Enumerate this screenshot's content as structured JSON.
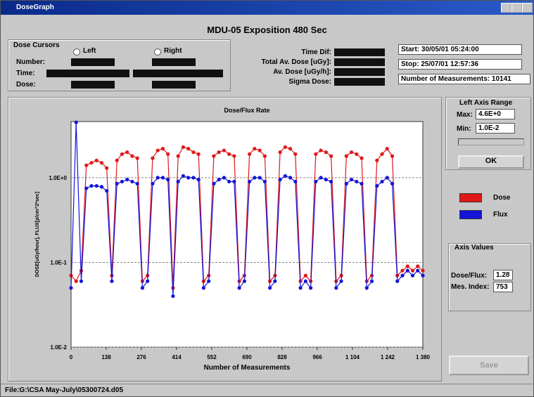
{
  "window": {
    "title": "DoseGraph"
  },
  "header": "MDU-05 Exposition 480 Sec",
  "cursors": {
    "title": "Dose Cursors",
    "left": "Left",
    "right": "Right",
    "number": "Number:",
    "time": "Time:",
    "dose": "Dose:"
  },
  "stats": {
    "time_dif": "Time Dif:",
    "total_av_dose": "Total Av. Dose [uGy]:",
    "av_dose": "Av. Dose [uGy/h]:",
    "sigma_dose": "Sigma Dose:"
  },
  "info": {
    "start": "Start: 30/05/01 05:24:00",
    "stop": "Stop: 25/07/01 12:57:36",
    "measurements": "Number of Measurements: 10141"
  },
  "axis_range": {
    "title": "Left Axis Range",
    "max_label": "Max:",
    "max": "4.6E+0",
    "min_label": "Min:",
    "min": "1.0E-2",
    "ok": "OK"
  },
  "axis_values": {
    "title": "Axis Values",
    "dose_flux_label": "Dose/Flux:",
    "dose_flux": "1.28",
    "index_label": "Mes. Index:",
    "index": "753"
  },
  "save": "Save",
  "status": "File:G:\\CSA May-July\\05300724.d05",
  "chart_data": {
    "type": "line",
    "title": "Dose/Flux Rate",
    "x_label": "Number of Measurements",
    "y_label": "DOSE[uGy/hour], FLUX[p/cm^2*sec]",
    "log_y": true,
    "grid": true,
    "xlim": [
      0,
      1380
    ],
    "ylim": [
      0.01,
      4.6
    ],
    "xticks": [
      0,
      138,
      276,
      414,
      552,
      690,
      828,
      966,
      {
        "value": 1104,
        "label": "1 104"
      },
      {
        "value": 1242,
        "label": "1 242"
      },
      {
        "value": 1380,
        "label": "1 380"
      }
    ],
    "yticks": [
      {
        "value": 0.01,
        "label": "1.0E-2"
      },
      {
        "value": 0.1,
        "label": "1.0E-1"
      },
      {
        "value": 1,
        "label": "1.0E+0"
      }
    ],
    "x": [
      0,
      20,
      40,
      60,
      80,
      100,
      120,
      140,
      160,
      180,
      200,
      220,
      240,
      260,
      280,
      300,
      320,
      340,
      360,
      380,
      400,
      420,
      440,
      460,
      480,
      500,
      520,
      540,
      560,
      580,
      600,
      620,
      640,
      660,
      680,
      700,
      720,
      740,
      760,
      780,
      800,
      820,
      840,
      860,
      880,
      900,
      920,
      940,
      960,
      980,
      1000,
      1020,
      1040,
      1060,
      1080,
      1100,
      1120,
      1140,
      1160,
      1180,
      1200,
      1220,
      1240,
      1260,
      1280,
      1300,
      1320,
      1340,
      1360,
      1380
    ],
    "series": [
      {
        "name": "Dose",
        "color": "#e01818",
        "values": [
          0.07,
          0.06,
          0.08,
          1.4,
          1.5,
          1.6,
          1.5,
          1.3,
          0.07,
          1.6,
          1.9,
          2.0,
          1.8,
          1.7,
          0.06,
          0.07,
          1.7,
          2.1,
          2.2,
          1.9,
          0.05,
          1.8,
          2.3,
          2.2,
          2.0,
          1.9,
          0.06,
          0.07,
          1.8,
          2.0,
          2.1,
          1.9,
          1.8,
          0.06,
          0.07,
          1.9,
          2.2,
          2.1,
          1.8,
          0.06,
          0.07,
          2.0,
          2.3,
          2.2,
          1.9,
          0.06,
          0.07,
          0.06,
          1.9,
          2.1,
          2.0,
          1.8,
          0.06,
          0.07,
          1.8,
          2.0,
          1.9,
          1.7,
          0.06,
          0.07,
          1.6,
          1.9,
          2.2,
          1.8,
          0.07,
          0.08,
          0.09,
          0.08,
          0.09,
          0.08
        ]
      },
      {
        "name": "Flux",
        "color": "#1414d8",
        "values": [
          0.05,
          4.5,
          0.06,
          0.75,
          0.8,
          0.8,
          0.78,
          0.7,
          0.06,
          0.85,
          0.9,
          0.95,
          0.9,
          0.85,
          0.05,
          0.06,
          0.85,
          1.0,
          1.0,
          0.95,
          0.04,
          0.9,
          1.05,
          1.0,
          1.0,
          0.95,
          0.05,
          0.06,
          0.85,
          0.95,
          1.0,
          0.9,
          0.9,
          0.05,
          0.06,
          0.9,
          1.0,
          1.0,
          0.9,
          0.05,
          0.06,
          0.95,
          1.05,
          1.0,
          0.9,
          0.05,
          0.06,
          0.05,
          0.9,
          1.0,
          0.95,
          0.9,
          0.05,
          0.06,
          0.85,
          0.95,
          0.9,
          0.85,
          0.05,
          0.06,
          0.8,
          0.9,
          1.0,
          0.85,
          0.06,
          0.07,
          0.08,
          0.07,
          0.08,
          0.07
        ]
      }
    ]
  }
}
